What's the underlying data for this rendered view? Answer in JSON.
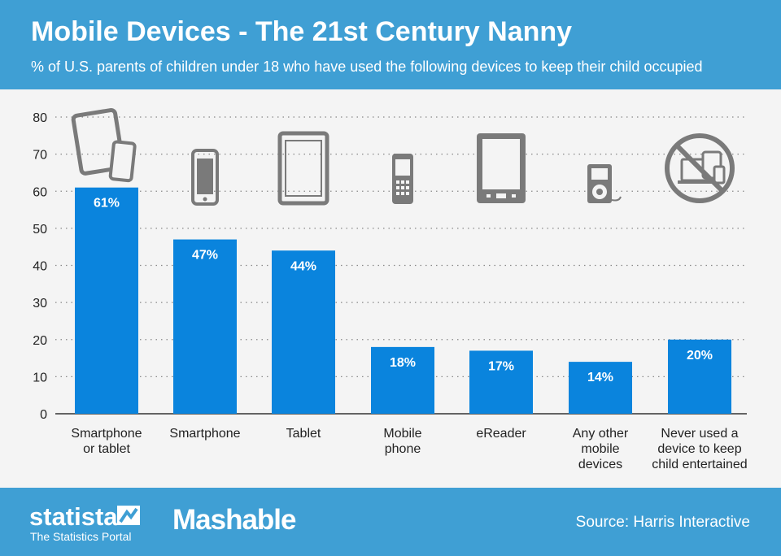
{
  "header": {
    "title": "Mobile Devices - The 21st Century Nanny",
    "subtitle": "% of U.S. parents of children under 18 who have used the following devices to keep their child occupied"
  },
  "footer": {
    "brand_name": "statista",
    "brand_tagline": "The Statistics Portal",
    "partner_logo": "Mashable",
    "source": "Source: Harris Interactive"
  },
  "colors": {
    "header_bg": "#3f9fd4",
    "bar": "#0a84dd",
    "icon": "#7a7a7a",
    "background": "#f4f4f4"
  },
  "icons": [
    "tablet-and-phone-icon",
    "smartphone-icon",
    "tablet-icon",
    "mobile-phone-icon",
    "ereader-icon",
    "music-player-icon",
    "no-devices-icon"
  ],
  "chart_data": {
    "type": "bar",
    "categories": [
      [
        "Smartphone",
        "or tablet"
      ],
      [
        "Smartphone"
      ],
      [
        "Tablet"
      ],
      [
        "Mobile",
        "phone"
      ],
      [
        "eReader"
      ],
      [
        "Any other",
        "mobile",
        "devices"
      ],
      [
        "Never used a",
        "device to keep",
        "child entertained"
      ]
    ],
    "values": [
      61,
      47,
      44,
      18,
      17,
      14,
      20
    ],
    "value_labels": [
      "61%",
      "47%",
      "44%",
      "18%",
      "17%",
      "14%",
      "20%"
    ],
    "ylim": [
      0,
      80
    ],
    "yticks": [
      0,
      10,
      20,
      30,
      40,
      50,
      60,
      70,
      80
    ],
    "grid": true
  }
}
